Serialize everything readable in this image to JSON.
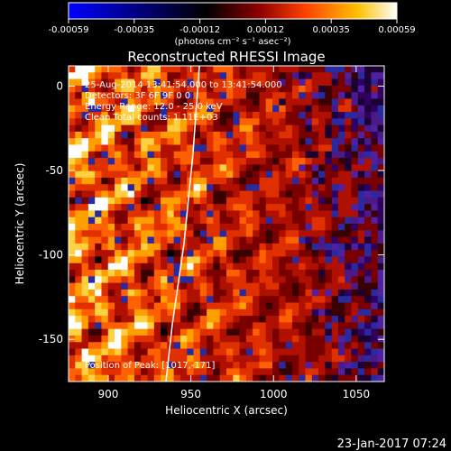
{
  "colorbar": {
    "tick_labels": [
      "-0.00059",
      "-0.00035",
      "-0.00012",
      "0.00012",
      "0.00035",
      "0.00059"
    ],
    "units": "(photons cm⁻² s⁻¹ asec⁻²)",
    "range": [
      -0.00059,
      0.00059
    ],
    "stops": [
      "#0000ff",
      "#000000",
      "#8b0000",
      "#ff4000",
      "#ffc000",
      "#ffffff"
    ]
  },
  "plot": {
    "title": "Reconstructed RHESSI Image",
    "xlabel": "Heliocentric X (arcsec)",
    "ylabel": "Heliocentric Y (arcsec)",
    "x_ticks": [
      "900",
      "950",
      "1000",
      "1050"
    ],
    "y_ticks": [
      "0",
      "-50",
      "-100",
      "-150"
    ],
    "xlim": [
      876,
      1067
    ],
    "ylim": [
      -175,
      12
    ],
    "annotations": {
      "time_range": "25-Aug-2014 13:41:54.000 to 13:41:54.000",
      "detectors": "Detectors: 3F 6F 9F 0 0",
      "energy": "Energy Range: 12.0 - 25.0 keV",
      "clean": "Clean    Total counts: 1.11E+03",
      "peak": "Position of Peak: [1017,-171]"
    },
    "limb_color": "#ffffff"
  },
  "footer": {
    "timestamp": "23-Jan-2017 07:24"
  }
}
